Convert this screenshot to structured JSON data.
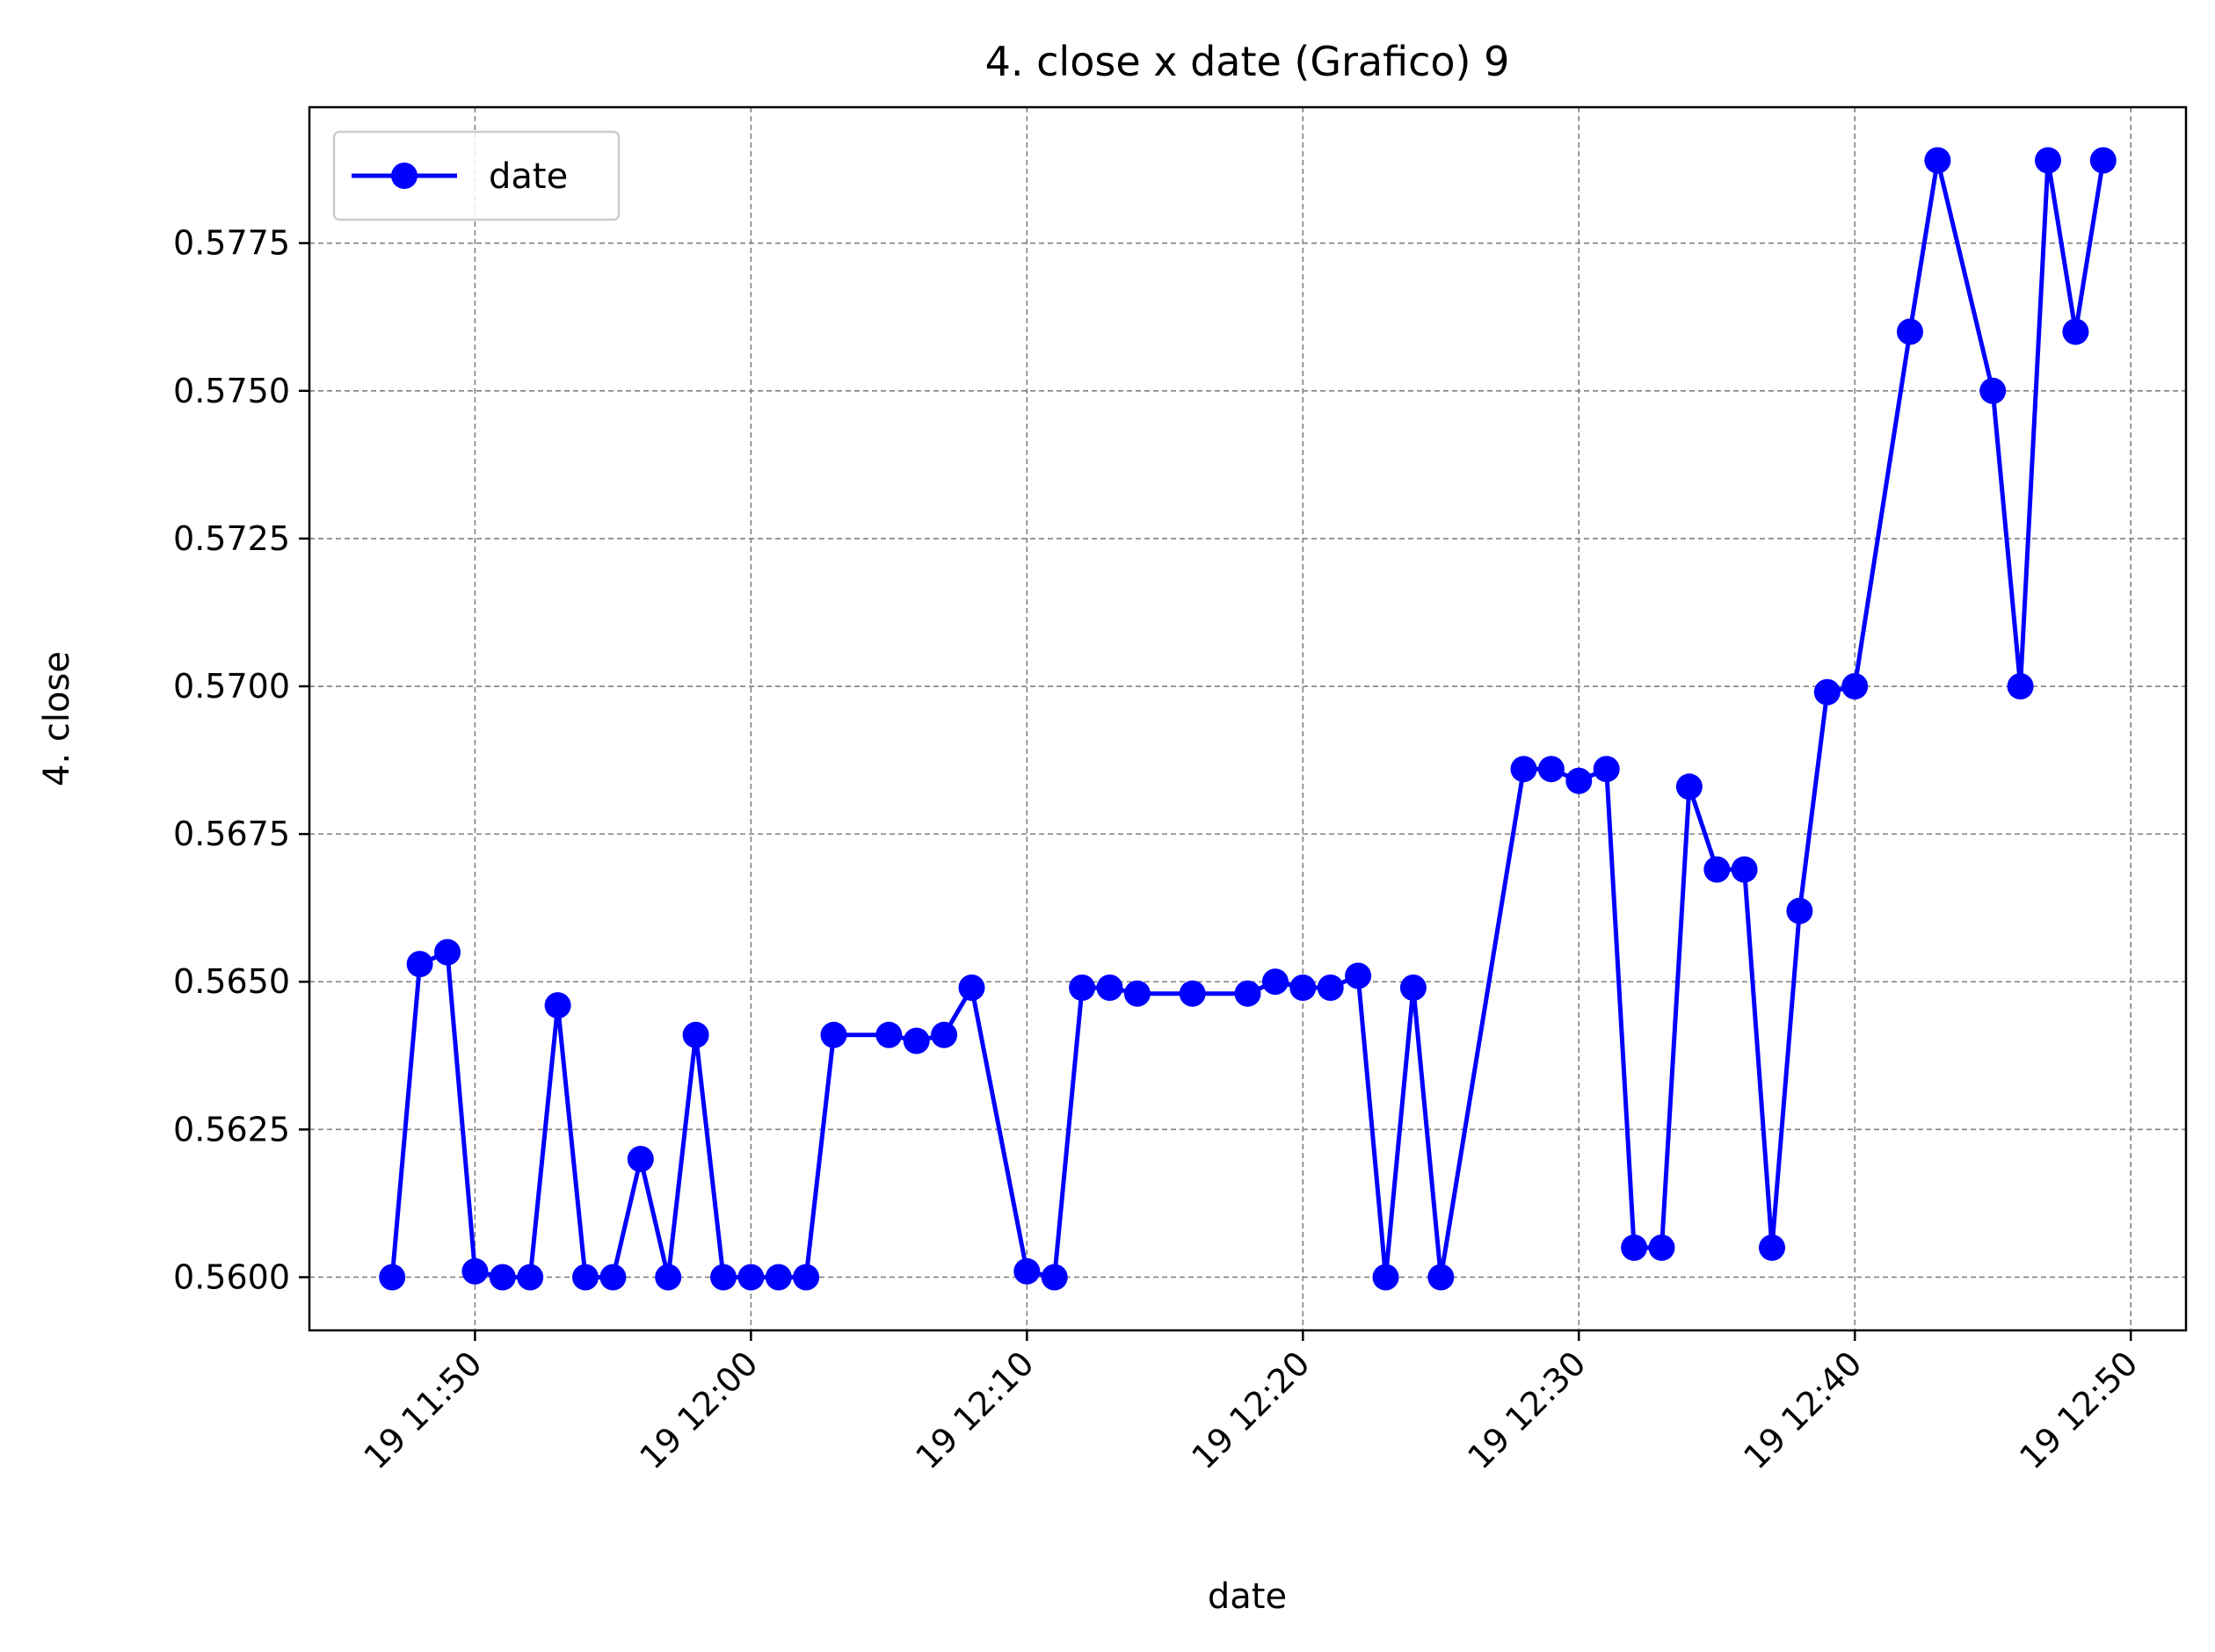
{
  "chart_data": {
    "type": "line",
    "title": "4. close x date (Grafico) 9",
    "xlabel": "date",
    "ylabel": "4. close",
    "x_ticks": [
      "19 11:50",
      "19 12:00",
      "19 12:10",
      "19 12:20",
      "19 12:30",
      "19 12:40",
      "19 12:50"
    ],
    "y_ticks": [
      "0.5600",
      "0.5625",
      "0.5650",
      "0.5675",
      "0.5700",
      "0.5725",
      "0.5750",
      "0.5775"
    ],
    "xlim": [
      "11:44",
      "12:52"
    ],
    "ylim": [
      0.5591,
      0.5798
    ],
    "grid": true,
    "legend_position": "top-left",
    "series": [
      {
        "name": "date",
        "color": "#0000ff",
        "marker": "circle",
        "x": [
          "11:47",
          "11:48",
          "11:49",
          "11:50",
          "11:51",
          "11:52",
          "11:53",
          "11:54",
          "11:55",
          "11:56",
          "11:57",
          "11:58",
          "11:59",
          "12:00",
          "12:01",
          "12:02",
          "12:03",
          "12:05",
          "12:06",
          "12:07",
          "12:08",
          "12:10",
          "12:11",
          "12:12",
          "12:13",
          "12:14",
          "12:16",
          "12:18",
          "12:19",
          "12:20",
          "12:21",
          "12:22",
          "12:23",
          "12:24",
          "12:25",
          "12:28",
          "12:29",
          "12:30",
          "12:31",
          "12:32",
          "12:33",
          "12:34",
          "12:35",
          "12:36",
          "12:37",
          "12:38",
          "12:39",
          "12:40",
          "12:42",
          "12:43",
          "12:45",
          "12:46",
          "12:47",
          "12:48",
          "12:49"
        ],
        "y": [
          0.56,
          0.5653,
          0.5655,
          0.5601,
          0.56,
          0.56,
          0.5646,
          0.56,
          0.56,
          0.562,
          0.56,
          0.5641,
          0.56,
          0.56,
          0.56,
          0.56,
          0.5641,
          0.5641,
          0.564,
          0.5641,
          0.5649,
          0.5601,
          0.56,
          0.5649,
          0.5649,
          0.5648,
          0.5648,
          0.5648,
          0.565,
          0.5649,
          0.5649,
          0.5651,
          0.56,
          0.5649,
          0.56,
          0.5686,
          0.5686,
          0.5684,
          0.5686,
          0.5605,
          0.5605,
          0.5683,
          0.5669,
          0.5669,
          0.5605,
          0.5662,
          0.5699,
          0.57,
          0.576,
          0.5789,
          0.575,
          0.57,
          0.5789,
          0.576,
          0.5789
        ]
      }
    ]
  }
}
